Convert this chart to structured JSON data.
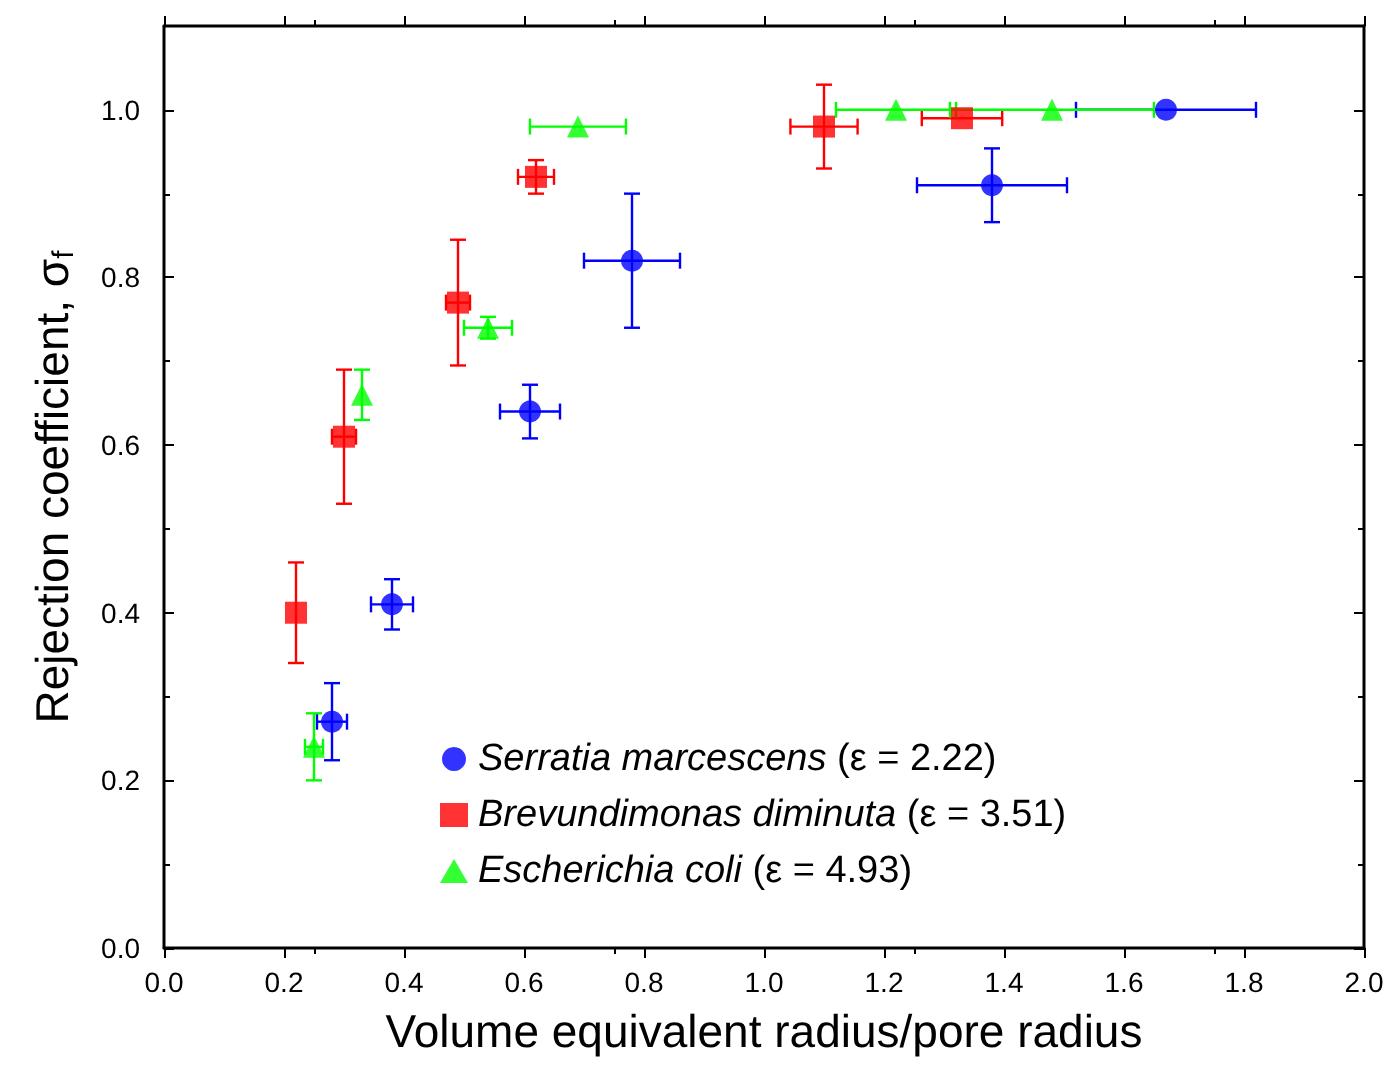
{
  "chart_data": {
    "type": "scatter",
    "xlabel": "Volume equivalent radius/pore radius",
    "ylabel": "Rejection coefficient, σ$_{f}$",
    "xlim": [
      0,
      2.0
    ],
    "xticks": [
      {
        "value": 0,
        "label": "0.0"
      },
      0.2,
      0.4,
      0.6,
      0.8,
      {
        "value": 1,
        "label": "1.0"
      },
      1.2,
      1.4,
      1.6,
      1.8,
      {
        "value": 2,
        "label": "2.0"
      }
    ],
    "ylim": [
      0,
      1.1
    ],
    "yticks": [
      {
        "value": 0,
        "label": "0.0"
      },
      0.2,
      0.4,
      0.6,
      0.8,
      {
        "value": 1,
        "label": "1.0"
      }
    ],
    "grid": false,
    "legend": "bottom right",
    "series": [
      {
        "name": "Serratia marcescens (ε = 2.22)",
        "color": "#0000ff",
        "marker": "circle",
        "x": [
          0.28,
          0.38,
          0.61,
          0.78,
          1.38,
          1.67
        ],
        "values": [
          0.27,
          0.41,
          0.64,
          0.82,
          0.91,
          1.0
        ],
        "errors": [
          0.046,
          0.03,
          0.032,
          0.08,
          0.044,
          null
        ],
        "xerrors": [
          0.025,
          0.035,
          0.05,
          0.08,
          0.125,
          0.15
        ]
      },
      {
        "name": "Brevundimonas diminuta (ε = 3.51)",
        "color": "#ff0000",
        "marker": "square",
        "x": [
          0.22,
          0.3,
          0.49,
          0.62,
          1.1,
          1.33
        ],
        "values": [
          0.4,
          0.61,
          0.77,
          0.92,
          0.98,
          0.99
        ],
        "errors": [
          0.06,
          0.08,
          0.075,
          0.02,
          0.05,
          null
        ],
        "xerrors": [
          null,
          0.02,
          0.02,
          0.03,
          0.056,
          0.067
        ]
      },
      {
        "name": "Escherichia coli (ε = 4.93)",
        "color": "#00ff00",
        "marker": "triangle",
        "x": [
          0.25,
          0.33,
          0.54,
          0.69,
          1.22,
          1.48
        ],
        "values": [
          0.24,
          0.66,
          0.74,
          0.98,
          1.0,
          1.0
        ],
        "errors": [
          0.04,
          0.03,
          0.013,
          null,
          null,
          null
        ],
        "xerrors": [
          0.015,
          null,
          0.04,
          0.08,
          0.1,
          0.17
        ]
      }
    ]
  }
}
